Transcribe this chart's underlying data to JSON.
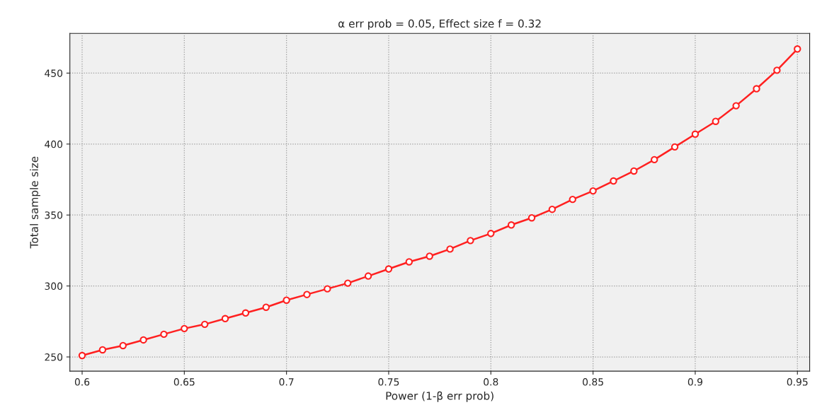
{
  "chart_data": {
    "type": "line",
    "title": "α err prob = 0.05, Effect size f = 0.32",
    "xlabel": "Power (1-β err prob)",
    "ylabel": "Total sample size",
    "x": [
      0.6,
      0.61,
      0.62,
      0.63,
      0.64,
      0.65,
      0.66,
      0.67,
      0.68,
      0.69,
      0.7,
      0.71,
      0.72,
      0.73,
      0.74,
      0.75,
      0.76,
      0.77,
      0.78,
      0.79,
      0.8,
      0.81,
      0.82,
      0.83,
      0.84,
      0.85,
      0.86,
      0.87,
      0.88,
      0.89,
      0.9,
      0.91,
      0.92,
      0.93,
      0.94,
      0.95
    ],
    "series": [
      {
        "color": "#ff2020",
        "values": [
          251,
          255,
          258,
          262,
          266,
          270,
          273,
          277,
          281,
          285,
          290,
          294,
          298,
          302,
          307,
          312,
          317,
          321,
          326,
          332,
          337,
          343,
          348,
          354,
          361,
          367,
          374,
          381,
          389,
          398,
          407,
          416,
          427,
          439,
          452,
          467
        ]
      }
    ],
    "xlim": [
      0.594,
      0.956
    ],
    "ylim": [
      240,
      478
    ],
    "xticks": [
      0.6,
      0.65,
      0.7,
      0.75,
      0.8,
      0.85,
      0.9,
      0.95
    ],
    "yticks": [
      250,
      300,
      350,
      400,
      450
    ],
    "grid": true,
    "marker": "circle",
    "line_style": "solid"
  }
}
